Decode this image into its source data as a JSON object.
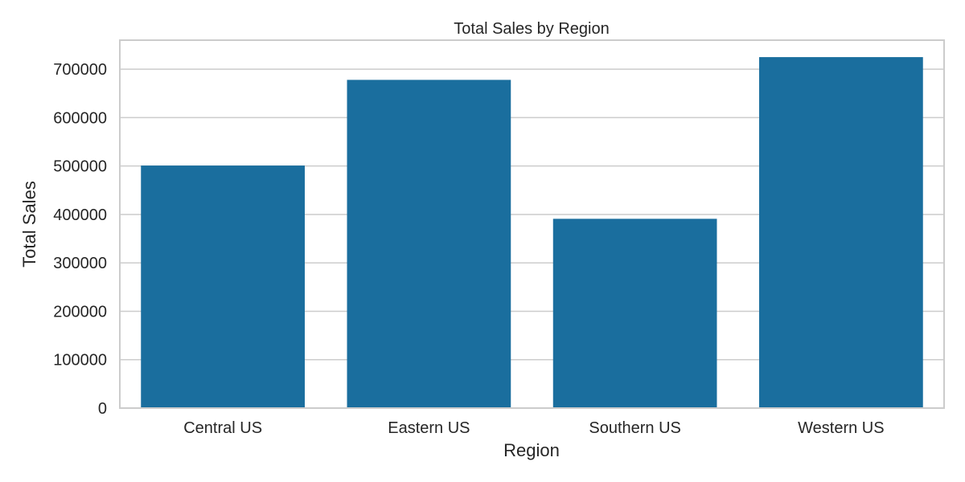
{
  "chart_data": {
    "type": "bar",
    "title": "Total Sales by Region",
    "xlabel": "Region",
    "ylabel": "Total Sales",
    "categories": [
      "Central US",
      "Eastern US",
      "Southern US",
      "Western US"
    ],
    "values": [
      501000,
      678000,
      391000,
      725000
    ],
    "ylim": [
      0,
      760000
    ],
    "yticks": [
      0,
      100000,
      200000,
      300000,
      400000,
      500000,
      600000,
      700000
    ],
    "grid": "horizontal",
    "bar_color": "#1a6e9e",
    "grid_color": "#cccccc",
    "frame_color": "#cccccc"
  }
}
